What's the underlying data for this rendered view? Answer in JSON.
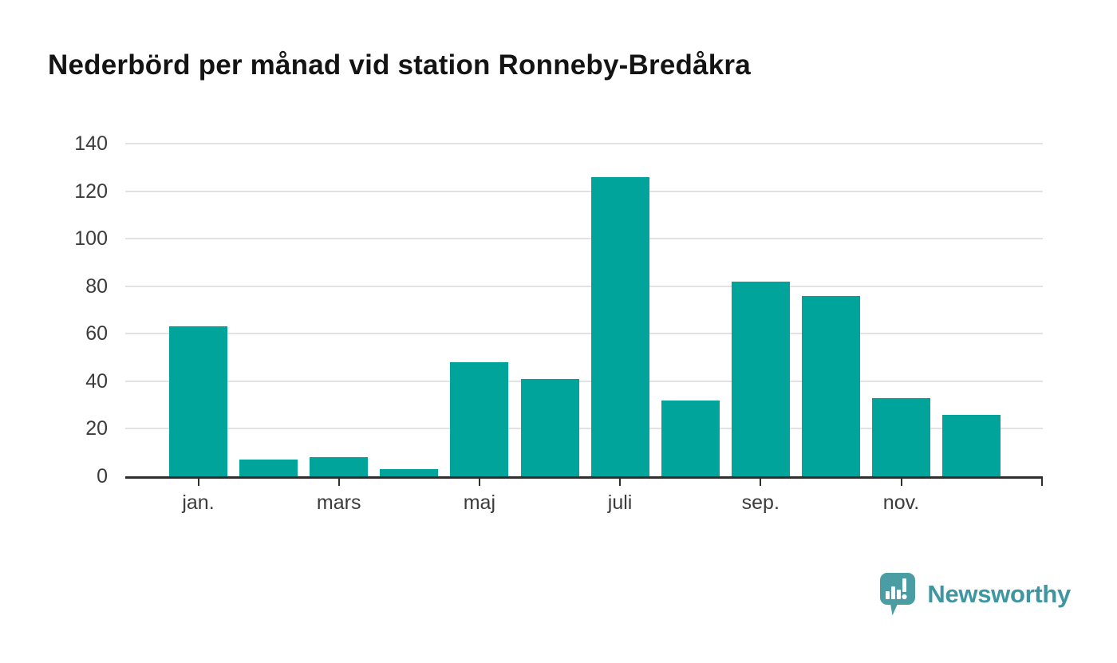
{
  "chart_data": {
    "type": "bar",
    "title": "Nederbörd per månad vid station Ronneby-Bredåkra",
    "values": [
      63,
      7,
      8,
      3,
      48,
      41,
      126,
      32,
      82,
      76,
      33,
      26
    ],
    "x_tick_labels": [
      "jan.",
      "",
      "mars",
      "",
      "maj",
      "",
      "juli",
      "",
      "sep.",
      "",
      "nov.",
      ""
    ],
    "y_ticks": [
      0,
      20,
      40,
      60,
      80,
      100,
      120,
      140
    ],
    "ylim": [
      0,
      140
    ],
    "xlabel": "",
    "ylabel": "",
    "grid": "horizontal",
    "legend": "none",
    "bar_color": "#00a49a",
    "axis_color": "#2e2e2e",
    "grid_color": "#e2e2e2",
    "tick_label_color": "#3c3c3c",
    "title_color": "#141414"
  },
  "logo": {
    "brand_name": "Newsworthy",
    "icon": "speech-bubble-bar-chart-icon",
    "icon_color": "#4a9da2",
    "text_color": "#3e96a0"
  }
}
